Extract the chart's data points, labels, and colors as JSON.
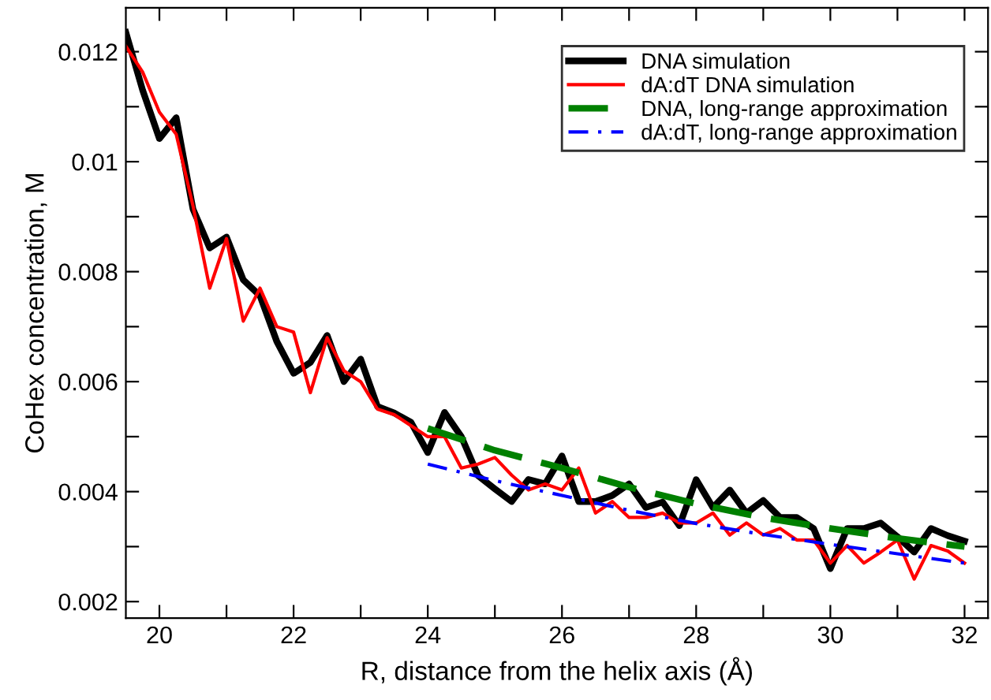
{
  "chart_data": {
    "type": "line",
    "xlabel": "R, distance from the helix axis (Å)",
    "ylabel": "CoHex concentration, M",
    "xlim": [
      19.5,
      32.35
    ],
    "ylim": [
      0.0017,
      0.0128
    ],
    "xticks": [
      20,
      {
        "value": 21,
        "label": null
      },
      22,
      {
        "value": 23,
        "label": null
      },
      24,
      {
        "value": 25,
        "label": null
      },
      26,
      {
        "value": 27,
        "label": null
      },
      28,
      {
        "value": 29,
        "label": null
      },
      30,
      {
        "value": 31,
        "label": null
      },
      32
    ],
    "yticks": [
      0.002,
      {
        "value": 0.003,
        "label": null
      },
      0.004,
      {
        "value": 0.005,
        "label": null
      },
      0.006,
      {
        "value": 0.007,
        "label": null
      },
      0.008,
      {
        "value": 0.009,
        "label": null
      },
      0.01,
      {
        "value": 0.011,
        "label": null
      },
      0.012
    ],
    "grid": false,
    "legend": "top right",
    "series": [
      {
        "name": "DNA simulation",
        "color": "#000000",
        "line_style": "solid",
        "x": [
          19.5,
          19.75,
          20.0,
          20.25,
          20.5,
          20.75,
          21.0,
          21.25,
          21.5,
          21.75,
          22.0,
          22.25,
          22.5,
          22.75,
          23.0,
          23.25,
          23.5,
          23.75,
          24.0,
          24.25,
          24.5,
          24.75,
          25.0,
          25.25,
          25.5,
          25.75,
          26.0,
          26.25,
          26.5,
          26.75,
          27.0,
          27.25,
          27.5,
          27.75,
          28.0,
          28.25,
          28.5,
          28.75,
          29.0,
          29.25,
          29.5,
          29.75,
          30.0,
          30.25,
          30.5,
          30.75,
          31.0,
          31.25,
          31.5,
          31.75,
          32.0
        ],
        "values": [
          0.01235,
          0.0113,
          0.01042,
          0.0108,
          0.00914,
          0.00843,
          0.00863,
          0.00785,
          0.00756,
          0.00673,
          0.00615,
          0.00635,
          0.00684,
          0.006,
          0.00641,
          0.00555,
          0.00543,
          0.00526,
          0.00471,
          0.00544,
          0.005,
          0.00429,
          0.00405,
          0.00382,
          0.00422,
          0.00414,
          0.00465,
          0.00382,
          0.00382,
          0.00393,
          0.00414,
          0.00371,
          0.00381,
          0.00338,
          0.00422,
          0.00371,
          0.00403,
          0.00361,
          0.00384,
          0.00353,
          0.00353,
          0.00333,
          0.0026,
          0.00333,
          0.00333,
          0.00343,
          0.00318,
          0.0029,
          0.00333,
          0.0032,
          0.0031
        ]
      },
      {
        "name": "dA:dT DNA simulation",
        "color": "#ff0000",
        "line_style": "solid",
        "x": [
          19.5,
          19.75,
          20.0,
          20.25,
          20.5,
          20.75,
          21.0,
          21.25,
          21.5,
          21.75,
          22.0,
          22.25,
          22.5,
          22.75,
          23.0,
          23.25,
          23.5,
          23.75,
          24.0,
          24.25,
          24.5,
          24.75,
          25.0,
          25.25,
          25.5,
          25.75,
          26.0,
          26.25,
          26.5,
          26.75,
          27.0,
          27.25,
          27.5,
          27.75,
          28.0,
          28.25,
          28.5,
          28.75,
          29.0,
          29.25,
          29.5,
          29.75,
          30.0,
          30.25,
          30.5,
          30.75,
          31.0,
          31.25,
          31.5,
          31.75,
          32.0
        ],
        "values": [
          0.0121,
          0.01163,
          0.0109,
          0.0105,
          0.0092,
          0.0077,
          0.0086,
          0.0071,
          0.0077,
          0.007,
          0.0069,
          0.0058,
          0.0068,
          0.0062,
          0.006,
          0.0055,
          0.0054,
          0.0052,
          0.005,
          0.005,
          0.00443,
          0.0045,
          0.00462,
          0.0043,
          0.00403,
          0.00414,
          0.00403,
          0.00443,
          0.00361,
          0.00382,
          0.00353,
          0.00353,
          0.00361,
          0.00343,
          0.00343,
          0.00361,
          0.00321,
          0.00343,
          0.00321,
          0.00333,
          0.00312,
          0.00312,
          0.0027,
          0.00302,
          0.0027,
          0.0029,
          0.00312,
          0.00241,
          0.00302,
          0.00292,
          0.0027
        ]
      },
      {
        "name": "DNA, long-range approximation",
        "color": "#008000",
        "line_style": "dashed",
        "x": [
          24,
          25,
          26,
          27,
          28,
          29,
          30,
          31,
          32
        ],
        "values": [
          0.00515,
          0.00475,
          0.00443,
          0.00408,
          0.00378,
          0.00353,
          0.00333,
          0.00315,
          0.003
        ]
      },
      {
        "name": "dA:dT, long-range approximation",
        "color": "#0000ff",
        "line_style": "dashdot",
        "x": [
          24,
          25,
          26,
          27,
          28,
          29,
          30,
          31,
          32
        ],
        "values": [
          0.0045,
          0.0042,
          0.00393,
          0.00366,
          0.00342,
          0.00322,
          0.00304,
          0.00287,
          0.0027
        ]
      }
    ]
  }
}
